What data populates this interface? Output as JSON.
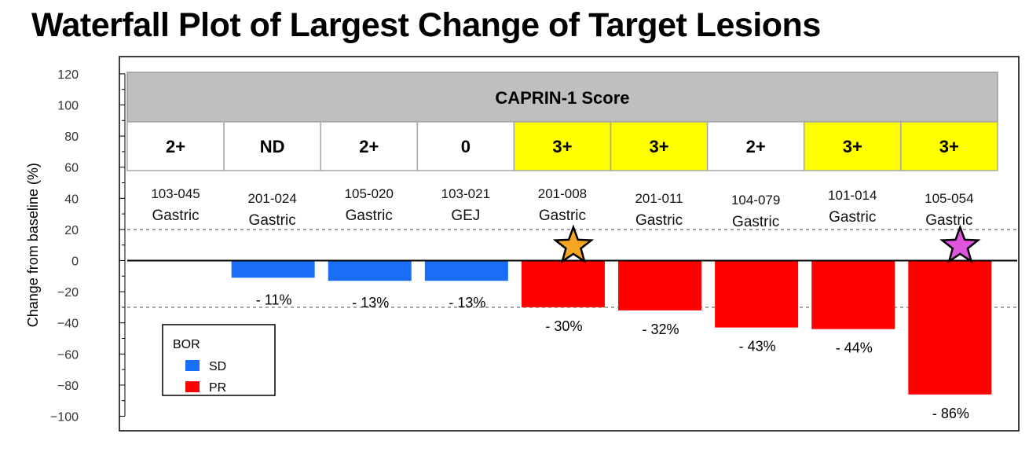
{
  "title": "Waterfall Plot of Largest Change of Target Lesions",
  "chart_data": {
    "type": "bar",
    "ylabel": "Change from baseline (%)",
    "ylim": [
      -100,
      120
    ],
    "yticks": [
      120,
      100,
      80,
      60,
      40,
      20,
      0,
      -20,
      -40,
      -60,
      -80,
      -100
    ],
    "ytick_labels": [
      "120",
      "100",
      "80",
      "60",
      "40",
      "20",
      "0",
      "−20",
      "−40",
      "−60",
      "−80",
      "−100"
    ],
    "reference_lines": [
      20,
      -30
    ],
    "score_header": "CAPRIN-1 Score",
    "patients": [
      {
        "id": "103-045",
        "site": "Gastric",
        "score": "2+",
        "value": 0,
        "bor": "SD",
        "label": "",
        "star": null
      },
      {
        "id": "201-024",
        "site": "Gastric",
        "score": "ND",
        "value": -11,
        "bor": "SD",
        "label": "- 11%",
        "star": null
      },
      {
        "id": "105-020",
        "site": "Gastric",
        "score": "2+",
        "value": -13,
        "bor": "SD",
        "label": "- 13%",
        "star": null
      },
      {
        "id": "103-021",
        "site": "GEJ",
        "score": "0",
        "value": -13,
        "bor": "SD",
        "label": "- 13%",
        "star": null
      },
      {
        "id": "201-008",
        "site": "Gastric",
        "score": "3+",
        "value": -30,
        "bor": "PR",
        "label": "- 30%",
        "star": "#f5a623"
      },
      {
        "id": "201-011",
        "site": "Gastric",
        "score": "3+",
        "value": -32,
        "bor": "PR",
        "label": "- 32%",
        "star": null
      },
      {
        "id": "104-079",
        "site": "Gastric",
        "score": "2+",
        "value": -43,
        "bor": "PR",
        "label": "- 43%",
        "star": null
      },
      {
        "id": "101-014",
        "site": "Gastric",
        "score": "3+",
        "value": -44,
        "bor": "PR",
        "label": "- 44%",
        "star": null
      },
      {
        "id": "105-054",
        "site": "Gastric",
        "score": "3+",
        "value": -86,
        "bor": "PR",
        "label": "- 86%",
        "star": "#e055e0"
      }
    ],
    "highlight_scores": [
      "3+"
    ],
    "legend": {
      "title": "BOR",
      "placement": "bottom-left",
      "items": [
        {
          "name": "SD",
          "color": "#1a6ef5"
        },
        {
          "name": "PR",
          "color": "#ff0000"
        }
      ]
    },
    "colors": {
      "SD": "#1a6ef5",
      "PR": "#ff0000",
      "highlight": "#ffff00",
      "header": "#bfbfbf"
    }
  }
}
